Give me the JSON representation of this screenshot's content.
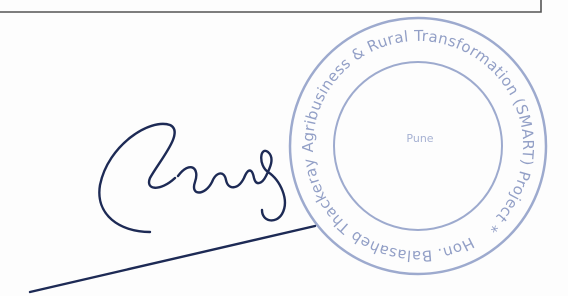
{
  "stamp": {
    "ring_text": "Hon. Balasaheb Thackeray Agribusiness & Rural Transformation (SMART) Project *",
    "center_text": "Pune"
  }
}
